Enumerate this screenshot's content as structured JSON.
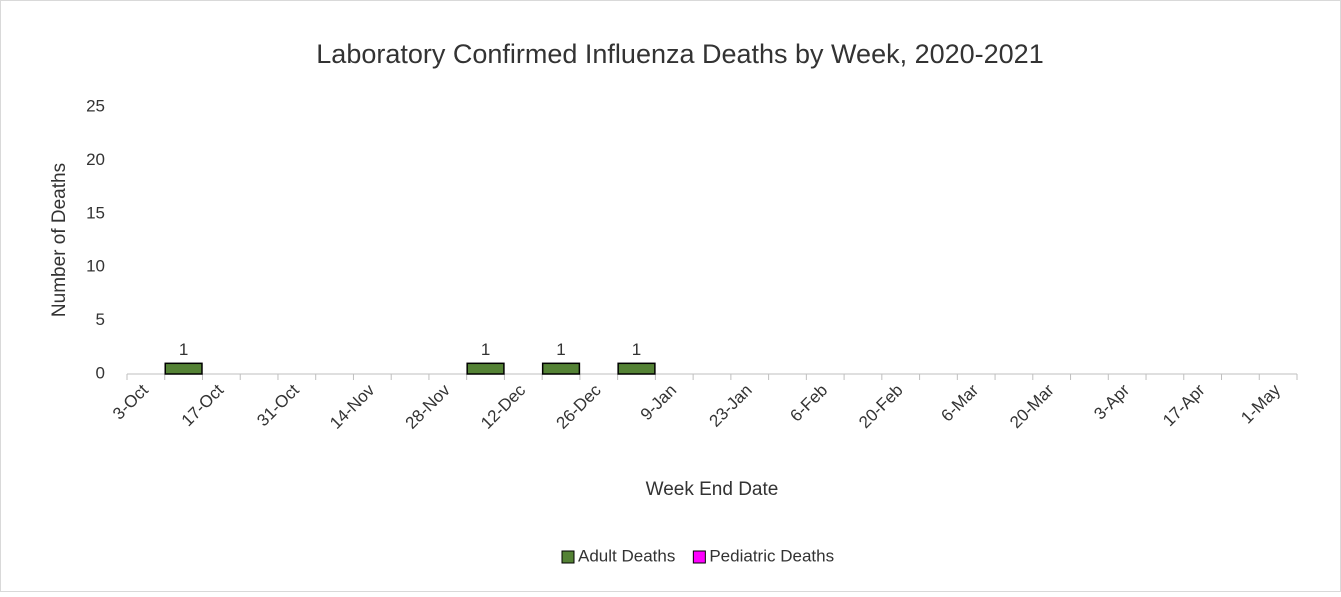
{
  "chart_data": {
    "type": "stacked_bar",
    "title": "Laboratory Confirmed Influenza Deaths by Week, 2020-2021",
    "x_label": "Week End Date",
    "y_label": "Number of Deaths",
    "categories": [
      "3-Oct",
      null,
      "17-Oct",
      null,
      "31-Oct",
      null,
      "14-Nov",
      null,
      "28-Nov",
      null,
      "12-Dec",
      null,
      "26-Dec",
      null,
      "9-Jan",
      null,
      "23-Jan",
      null,
      "6-Feb",
      null,
      "20-Feb",
      null,
      "6-Mar",
      null,
      "20-Mar",
      null,
      "3-Apr",
      null,
      "17-Apr",
      null,
      "1-May"
    ],
    "series": [
      {
        "name": "Adult Deaths",
        "color": "#548235",
        "values": [
          0,
          1,
          0,
          0,
          0,
          0,
          0,
          0,
          0,
          1,
          0,
          1,
          0,
          1,
          0,
          0,
          0,
          0,
          0,
          0,
          0,
          0,
          0,
          0,
          0,
          0,
          0,
          0,
          0,
          0,
          0
        ]
      },
      {
        "name": "Pediatric Deaths",
        "color": "#ff00ff",
        "values": [
          0,
          0,
          0,
          0,
          0,
          0,
          0,
          0,
          0,
          0,
          0,
          0,
          0,
          0,
          0,
          0,
          0,
          0,
          0,
          0,
          0,
          0,
          0,
          0,
          0,
          0,
          0,
          0,
          0,
          0,
          0
        ]
      }
    ],
    "ylim": [
      0,
      25
    ],
    "yticks": [
      0,
      5,
      10,
      15,
      20,
      25
    ],
    "grid": false,
    "legend": "bottom"
  }
}
